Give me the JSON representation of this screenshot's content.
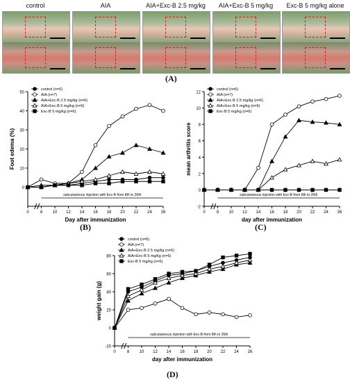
{
  "photos": {
    "labels": [
      "control",
      "AIA",
      "AIA+Exc-B 2.5 mg/kg",
      "AIA+Exc-B 5 mg/kg",
      "Exc-B 5 mg/kg alone"
    ]
  },
  "panel_labels": {
    "A": "(A)",
    "B": "(B)",
    "C": "(C)",
    "D": "(D)"
  },
  "legend_B": [
    "control (n=6)",
    "AIA (n=7)",
    "AIA+Exc-B 2.5 mg/kg (n=6)",
    "AIA+Exc-B 5 mg/kg (n=6)",
    "Exc-B 5 mg/kg (n=6)"
  ],
  "legend_C": [
    "control (n=6)",
    "AIA (n=7)",
    "AIA+Exc-B 2.5 mg/kg (n=6)",
    "AIA+Exc-B 5 mg/kg (n=6)",
    "Exc-B 5 mg/kg (n=6)"
  ],
  "legend_D": [
    "control (n=6)",
    "AIA (n=7)",
    "AIA+Exc-B 2.5 mg/kg (n=6)",
    "AIA+Exc-B 5 mg/kg (n=6)",
    "Exc-B 5 mg/kg (n=6)"
  ],
  "injection_note": "subcutaneous injection with Exc-B from 8th to 26th",
  "chart_data": [
    {
      "type": "line",
      "panel": "B",
      "xlabel": "Day after immunization",
      "ylabel": "Foot edema (%)",
      "x": [
        0,
        8,
        10,
        12,
        14,
        16,
        18,
        20,
        22,
        24,
        26
      ],
      "xticks": [
        0,
        8,
        10,
        12,
        14,
        16,
        18,
        20,
        22,
        24,
        26
      ],
      "ylim": [
        -10,
        50
      ],
      "yticks": [
        0,
        10,
        20,
        30,
        40,
        50
      ],
      "series": [
        {
          "name": "control (n=6)",
          "values": [
            0,
            0,
            1,
            1,
            2,
            3,
            4,
            4,
            4,
            5,
            5
          ]
        },
        {
          "name": "AIA (n=7)",
          "values": [
            0,
            4,
            2,
            2,
            8,
            22,
            32,
            37,
            41,
            43,
            40
          ]
        },
        {
          "name": "AIA+Exc-B 2.5 mg/kg (n=6)",
          "values": [
            0,
            1,
            1,
            2,
            4,
            10,
            16,
            18,
            22,
            20,
            18
          ]
        },
        {
          "name": "AIA+Exc-B 5 mg/kg (n=6)",
          "values": [
            0,
            0,
            1,
            2,
            3,
            4,
            6,
            8,
            7,
            8,
            7
          ]
        },
        {
          "name": "Exc-B 5 mg/kg (n=6)",
          "values": [
            0,
            0,
            1,
            1,
            1,
            2,
            2,
            3,
            3,
            3,
            3
          ]
        }
      ]
    },
    {
      "type": "line",
      "panel": "C",
      "xlabel": "day after immunization",
      "ylabel": "mean arthritis score",
      "x": [
        0,
        8,
        10,
        12,
        14,
        16,
        18,
        20,
        22,
        24,
        26
      ],
      "xticks": [
        0,
        8,
        10,
        12,
        14,
        16,
        18,
        20,
        22,
        24,
        26
      ],
      "ylim": [
        -2,
        12
      ],
      "yticks": [
        -2,
        0,
        2,
        4,
        6,
        8,
        10,
        12
      ],
      "series": [
        {
          "name": "control (n=6)",
          "values": [
            0,
            0,
            0,
            0,
            0,
            0,
            0,
            0,
            0,
            0,
            0
          ]
        },
        {
          "name": "AIA (n=7)",
          "values": [
            0,
            0,
            0,
            0,
            2.7,
            8,
            9.2,
            10.2,
            10.8,
            11.1,
            11.5
          ]
        },
        {
          "name": "AIA+Exc-B 2.5 mg/kg (n=6)",
          "values": [
            0,
            0,
            0,
            0,
            0,
            3.5,
            6.5,
            8.5,
            8.3,
            8.2,
            8
          ]
        },
        {
          "name": "AIA+Exc-B 5 mg/kg (n=6)",
          "values": [
            0,
            0,
            0,
            0,
            0,
            1.5,
            2.5,
            3,
            3.5,
            3.2,
            3.7
          ]
        },
        {
          "name": "Exc-B 5 mg/kg (n=6)",
          "values": [
            0,
            0,
            0,
            0,
            0,
            0,
            0,
            0,
            0,
            0,
            0
          ]
        }
      ]
    },
    {
      "type": "line",
      "panel": "D",
      "xlabel": "day after immunization",
      "ylabel": "weight gain (g)",
      "x": [
        0,
        8,
        10,
        12,
        14,
        16,
        18,
        20,
        22,
        24,
        26
      ],
      "xticks": [
        0,
        8,
        10,
        12,
        14,
        16,
        18,
        20,
        22,
        24,
        26
      ],
      "ylim": [
        -20,
        80
      ],
      "yticks": [
        -20,
        0,
        20,
        40,
        60,
        80
      ],
      "series": [
        {
          "name": "control (n=6)",
          "values": [
            0,
            40,
            45,
            52,
            58,
            60,
            63,
            68,
            72,
            75,
            78
          ]
        },
        {
          "name": "AIA (n=7)",
          "values": [
            0,
            20,
            22,
            27,
            32,
            22,
            15,
            17,
            15,
            12,
            14
          ]
        },
        {
          "name": "AIA+Exc-B 2.5 mg/kg (n=6)",
          "values": [
            0,
            30,
            38,
            44,
            50,
            55,
            58,
            62,
            65,
            70,
            72
          ]
        },
        {
          "name": "AIA+Exc-B 5 mg/kg (n=6)",
          "values": [
            0,
            35,
            42,
            50,
            55,
            58,
            60,
            65,
            68,
            72,
            75
          ]
        },
        {
          "name": "Exc-B 5 mg/kg (n=6)",
          "values": [
            0,
            43,
            48,
            54,
            60,
            62,
            63,
            70,
            78,
            80,
            82
          ]
        }
      ]
    }
  ]
}
